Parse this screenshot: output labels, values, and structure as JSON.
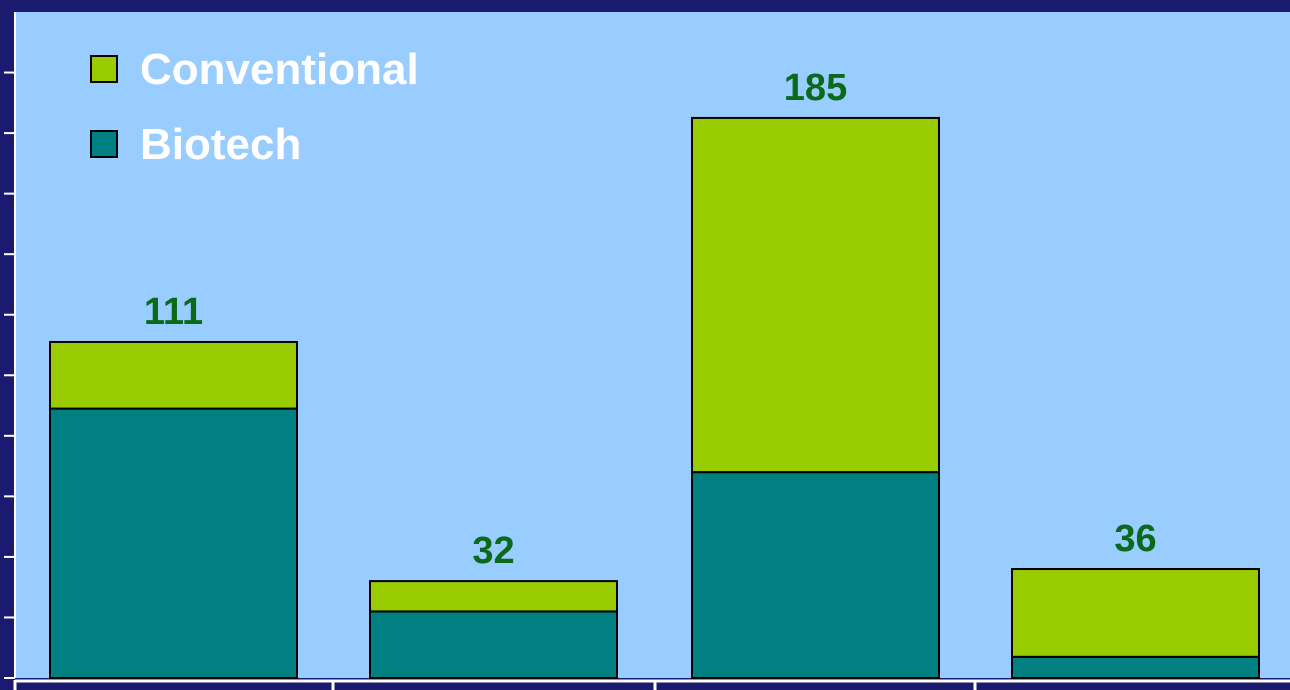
{
  "colors": {
    "background": "#1a1a6e",
    "plot_area": "#99ccff",
    "conventional": "#99cc00",
    "biotech": "#008080",
    "value_label": "#0a6a1a",
    "legend_text": "#ffffff"
  },
  "chart_data": {
    "type": "bar",
    "stacked": true,
    "categories": [
      "",
      "",
      "",
      ""
    ],
    "series": [
      {
        "name": "Biotech",
        "values": [
          89,
          22,
          68,
          7
        ]
      },
      {
        "name": "Conventional",
        "values": [
          22,
          10,
          117,
          29
        ]
      }
    ],
    "totals": [
      "111",
      "32",
      "185",
      "36"
    ],
    "ylim": [
      0,
      220
    ],
    "legend_position": "top-left",
    "grid": false
  }
}
